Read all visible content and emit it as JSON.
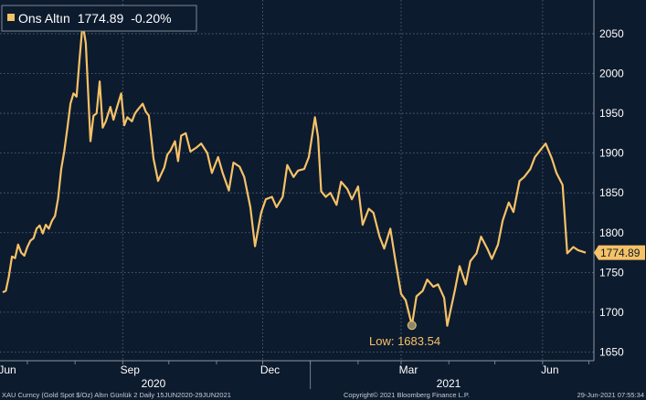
{
  "chart_data": {
    "type": "line",
    "title": "",
    "xlabel": "",
    "ylabel": "",
    "ylim": [
      1640,
      2090
    ],
    "y_ticks": [
      1650,
      1700,
      1750,
      1800,
      1850,
      1900,
      1950,
      2000,
      2050
    ],
    "y_tick_labels": [
      "1650",
      "1700",
      "1750",
      "1800",
      "1850",
      "1900",
      "1950",
      "2000",
      "2050"
    ],
    "x_month_labels": [
      "Jun",
      "Sep",
      "Dec",
      "Mar",
      "Jun"
    ],
    "x_year_labels": [
      "2020",
      "2021"
    ],
    "grid": true,
    "line_color": "#f6c267",
    "background_color": "#0d1b2e",
    "legend": {
      "series_name": "Ons Altın",
      "last_value": "1774.89",
      "change": "-0.20%",
      "position": "top-left"
    },
    "last_price_label": "1774.89",
    "low_annotation": {
      "label": "Low: 1683.54",
      "value": 1683.54,
      "date": "2021-03-08"
    },
    "high_marker": {
      "value": 2063,
      "date": "2020-08-06"
    },
    "series": [
      {
        "x": [
          "2020-06-15",
          "2020-06-17",
          "2020-06-19",
          "2020-06-21",
          "2020-06-23",
          "2020-06-25",
          "2020-06-27",
          "2020-06-29",
          "2020-07-01",
          "2020-07-03",
          "2020-07-05",
          "2020-07-07",
          "2020-07-09",
          "2020-07-11",
          "2020-07-13",
          "2020-07-15",
          "2020-07-17",
          "2020-07-19",
          "2020-07-21",
          "2020-07-23",
          "2020-07-25",
          "2020-07-27",
          "2020-07-29",
          "2020-07-31",
          "2020-08-02",
          "2020-08-04",
          "2020-08-06",
          "2020-08-08",
          "2020-08-11",
          "2020-08-13",
          "2020-08-15",
          "2020-08-17",
          "2020-08-19",
          "2020-08-21",
          "2020-08-24",
          "2020-08-26",
          "2020-08-28",
          "2020-08-31",
          "2020-09-02",
          "2020-09-04",
          "2020-09-07",
          "2020-09-09",
          "2020-09-11",
          "2020-09-14",
          "2020-09-16",
          "2020-09-18",
          "2020-09-21",
          "2020-09-24",
          "2020-09-28",
          "2020-09-30",
          "2020-10-02",
          "2020-10-05",
          "2020-10-07",
          "2020-10-09",
          "2020-10-12",
          "2020-10-15",
          "2020-10-19",
          "2020-10-22",
          "2020-10-26",
          "2020-10-29",
          "2020-11-02",
          "2020-11-05",
          "2020-11-09",
          "2020-11-12",
          "2020-11-16",
          "2020-11-19",
          "2020-11-23",
          "2020-11-26",
          "2020-11-30",
          "2020-12-03",
          "2020-12-07",
          "2020-12-10",
          "2020-12-14",
          "2020-12-17",
          "2020-12-21",
          "2020-12-24",
          "2020-12-28",
          "2020-12-31",
          "2021-01-04",
          "2021-01-06",
          "2021-01-08",
          "2021-01-11",
          "2021-01-14",
          "2021-01-18",
          "2021-01-21",
          "2021-01-25",
          "2021-01-28",
          "2021-02-01",
          "2021-02-04",
          "2021-02-08",
          "2021-02-11",
          "2021-02-15",
          "2021-02-18",
          "2021-02-22",
          "2021-02-25",
          "2021-03-01",
          "2021-03-04",
          "2021-03-08",
          "2021-03-11",
          "2021-03-15",
          "2021-03-18",
          "2021-03-22",
          "2021-03-25",
          "2021-03-29",
          "2021-03-31",
          "2021-04-05",
          "2021-04-08",
          "2021-04-12",
          "2021-04-15",
          "2021-04-19",
          "2021-04-22",
          "2021-04-26",
          "2021-04-29",
          "2021-05-03",
          "2021-05-06",
          "2021-05-10",
          "2021-05-13",
          "2021-05-17",
          "2021-05-20",
          "2021-05-24",
          "2021-05-27",
          "2021-05-31",
          "2021-06-03",
          "2021-06-07",
          "2021-06-10",
          "2021-06-14",
          "2021-06-17",
          "2021-06-21",
          "2021-06-24",
          "2021-06-29"
        ],
        "y": [
          1725,
          1727,
          1745,
          1770,
          1768,
          1785,
          1775,
          1771,
          1782,
          1790,
          1793,
          1805,
          1809,
          1799,
          1810,
          1805,
          1815,
          1821,
          1843,
          1880,
          1902,
          1931,
          1962,
          1975,
          1971,
          2020,
          2063,
          2038,
          1915,
          1947,
          1950,
          1990,
          1932,
          1940,
          1958,
          1942,
          1956,
          1975,
          1935,
          1945,
          1940,
          1950,
          1955,
          1962,
          1952,
          1947,
          1893,
          1865,
          1882,
          1898,
          1903,
          1915,
          1890,
          1922,
          1925,
          1902,
          1907,
          1912,
          1900,
          1875,
          1895,
          1875,
          1853,
          1888,
          1883,
          1870,
          1832,
          1783,
          1825,
          1842,
          1845,
          1832,
          1845,
          1885,
          1870,
          1878,
          1880,
          1895,
          1945,
          1920,
          1852,
          1845,
          1850,
          1835,
          1864,
          1855,
          1842,
          1858,
          1810,
          1830,
          1825,
          1795,
          1780,
          1805,
          1768,
          1723,
          1715,
          1683.54,
          1720,
          1727,
          1741,
          1732,
          1735,
          1718,
          1683,
          1728,
          1758,
          1735,
          1764,
          1774,
          1795,
          1780,
          1767,
          1785,
          1815,
          1838,
          1826,
          1865,
          1870,
          1880,
          1895,
          1905,
          1912,
          1893,
          1875,
          1860,
          1774,
          1782,
          1778,
          1774.89
        ]
      }
    ]
  },
  "footer": {
    "left": "XAU Curncy (Gold Spot   $/Oz) Altın Günlük 2  Daily 15JUN2020-29JUN2021",
    "center": "Copyright© 2021 Bloomberg Finance L.P.",
    "right": "29-Jun-2021 07:55:34"
  }
}
